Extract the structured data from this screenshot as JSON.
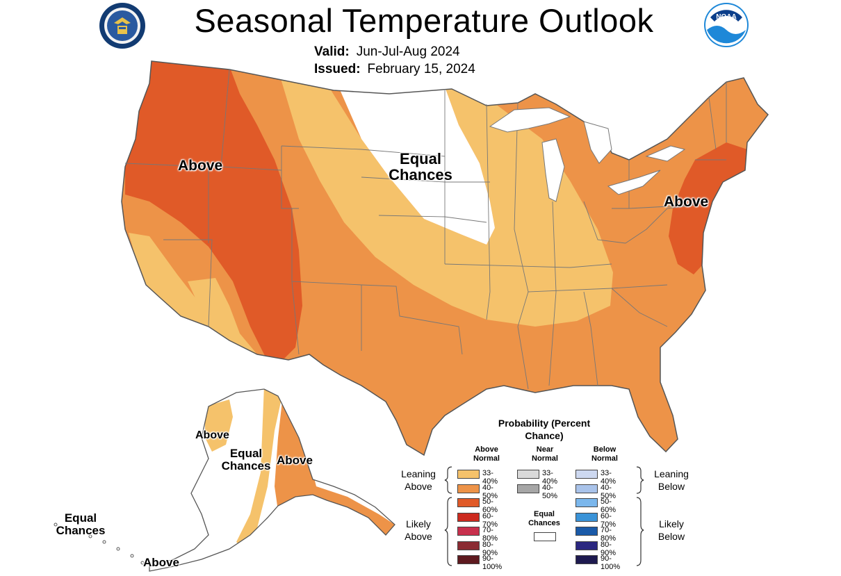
{
  "header": {
    "title": "Seasonal Temperature Outlook",
    "valid_label": "Valid:",
    "valid_value": "Jun-Jul-Aug 2024",
    "issued_label": "Issued:",
    "issued_value": "February 15, 2024"
  },
  "logos": {
    "left": "Department of Commerce seal",
    "right_text": "NOAA"
  },
  "map_labels": {
    "west_above": "Above",
    "central_equal": "Equal Chances",
    "east_above": "Above",
    "ak_above_west": "Above",
    "ak_equal_mid": "Equal Chances",
    "ak_above_east": "Above",
    "ak_equal_sw": "Equal Chances",
    "ak_above_bottom": "Above"
  },
  "legend": {
    "title": "Probability (Percent Chance)",
    "col_above": "Above Normal",
    "col_near": "Near Normal",
    "col_below": "Below Normal",
    "leaning_above": "Leaning Above",
    "likely_above": "Likely Above",
    "leaning_below": "Leaning Below",
    "likely_below": "Likely Below",
    "equal_chances": "Equal Chances",
    "above": [
      {
        "label": "33-40%",
        "color": "#f5c26b"
      },
      {
        "label": "40-50%",
        "color": "#ed9348"
      },
      {
        "label": "50-60%",
        "color": "#e05a28"
      },
      {
        "label": "60-70%",
        "color": "#cc2a1f"
      },
      {
        "label": "70-80%",
        "color": "#c8304d"
      },
      {
        "label": "80-90%",
        "color": "#8b2b32"
      },
      {
        "label": "90-100%",
        "color": "#5e1a1f"
      }
    ],
    "near": [
      {
        "label": "33-40%",
        "color": "#d9d9d9"
      },
      {
        "label": "40-50%",
        "color": "#a6a6a6"
      }
    ],
    "below": [
      {
        "label": "33-40%",
        "color": "#cdd8f0"
      },
      {
        "label": "40-50%",
        "color": "#a9c3ea"
      },
      {
        "label": "50-60%",
        "color": "#7bb7ec"
      },
      {
        "label": "60-70%",
        "color": "#3a93d8"
      },
      {
        "label": "70-80%",
        "color": "#1a5aa8"
      },
      {
        "label": "80-90%",
        "color": "#2b2780"
      },
      {
        "label": "90-100%",
        "color": "#1e1a4f"
      }
    ]
  }
}
